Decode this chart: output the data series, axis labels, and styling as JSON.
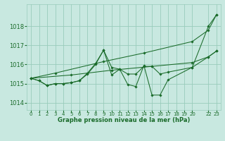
{
  "background_color": "#c8e8e0",
  "grid_color": "#99ccbb",
  "line_color": "#1a6b2a",
  "xlabel": "Graphe pression niveau de la mer (hPa)",
  "ylim": [
    1013.62,
    1019.15
  ],
  "xlim": [
    -0.5,
    23.5
  ],
  "yticks": [
    1014,
    1015,
    1016,
    1017,
    1018
  ],
  "xticks": [
    0,
    1,
    2,
    3,
    4,
    5,
    6,
    7,
    8,
    9,
    10,
    11,
    12,
    13,
    14,
    15,
    16,
    17,
    18,
    19,
    20,
    22,
    23
  ],
  "series": [
    {
      "x": [
        0,
        3,
        9,
        14,
        20,
        22,
        23
      ],
      "y": [
        1015.28,
        1015.55,
        1016.15,
        1016.6,
        1017.2,
        1017.8,
        1018.6
      ]
    },
    {
      "x": [
        0,
        5,
        10,
        15,
        20,
        22,
        23
      ],
      "y": [
        1015.28,
        1015.45,
        1015.7,
        1015.9,
        1016.1,
        1016.4,
        1016.7
      ]
    },
    {
      "x": [
        0,
        1,
        2,
        3,
        4,
        5,
        6,
        7,
        8,
        9,
        10,
        11,
        12,
        13,
        14,
        15,
        16,
        17,
        20,
        22,
        23
      ],
      "y": [
        1015.28,
        1015.15,
        1014.9,
        1015.0,
        1015.0,
        1015.05,
        1015.15,
        1015.5,
        1016.0,
        1016.75,
        1015.85,
        1015.75,
        1015.5,
        1015.5,
        1015.9,
        1015.9,
        1015.5,
        1015.6,
        1015.85,
        1016.4,
        1016.7
      ]
    },
    {
      "x": [
        0,
        1,
        2,
        3,
        4,
        5,
        6,
        7,
        8,
        9,
        10,
        11,
        12,
        13,
        14,
        15,
        16,
        17,
        20,
        22,
        23
      ],
      "y": [
        1015.28,
        1015.15,
        1014.9,
        1015.0,
        1015.0,
        1015.05,
        1015.15,
        1015.55,
        1016.05,
        1016.75,
        1015.45,
        1015.75,
        1014.95,
        1014.85,
        1015.95,
        1014.4,
        1014.4,
        1015.2,
        1015.85,
        1018.0,
        1018.6
      ]
    }
  ]
}
